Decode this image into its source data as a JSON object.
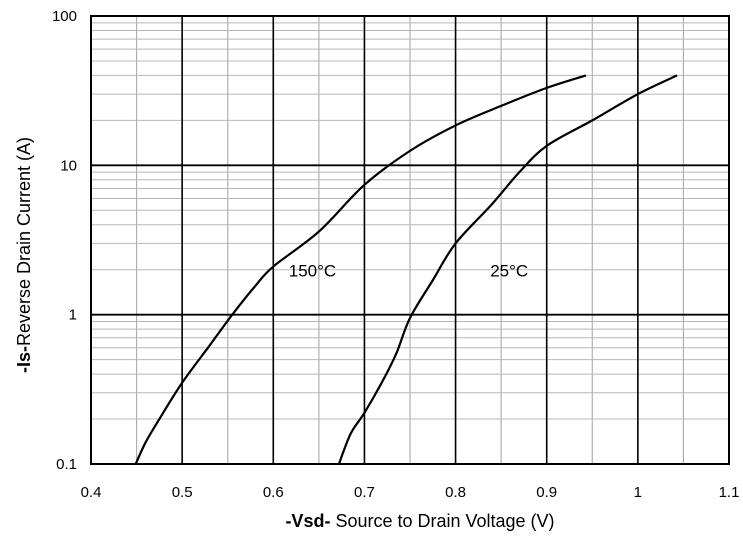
{
  "chart_data": {
    "type": "line",
    "xlabel_bold": "-Vsd-",
    "xlabel_rest": " Source to Drain Voltage (V)",
    "ylabel_bold": "-Is-",
    "ylabel_rest": "Reverse  Drain Current (A)",
    "xlim": [
      0.4,
      1.1
    ],
    "ylim": [
      0.1,
      100
    ],
    "yscale": "log",
    "grid": true,
    "x_ticks": [
      0.4,
      0.5,
      0.6,
      0.7,
      0.8,
      0.9,
      1,
      1.1
    ],
    "x_tick_labels": [
      "0.4",
      "0.5",
      "0.6",
      "0.7",
      "0.8",
      "0.9",
      "1",
      "1.1"
    ],
    "y_ticks": [
      0.1,
      1,
      10,
      100
    ],
    "y_tick_labels": [
      "0.1",
      "1",
      "10",
      "100"
    ],
    "series": [
      {
        "name": "150°C",
        "color": "#000000",
        "points": [
          [
            0.449,
            0.1
          ],
          [
            0.46,
            0.14
          ],
          [
            0.475,
            0.2
          ],
          [
            0.5,
            0.35
          ],
          [
            0.53,
            0.62
          ],
          [
            0.555,
            1.0
          ],
          [
            0.58,
            1.55
          ],
          [
            0.6,
            2.1
          ],
          [
            0.65,
            3.6
          ],
          [
            0.7,
            7.4
          ],
          [
            0.75,
            12.5
          ],
          [
            0.8,
            18.5
          ],
          [
            0.85,
            25
          ],
          [
            0.9,
            33
          ],
          [
            0.943,
            40
          ]
        ]
      },
      {
        "name": "25°C",
        "color": "#000000",
        "points": [
          [
            0.672,
            0.1
          ],
          [
            0.685,
            0.16
          ],
          [
            0.7,
            0.22
          ],
          [
            0.72,
            0.36
          ],
          [
            0.735,
            0.55
          ],
          [
            0.75,
            0.95
          ],
          [
            0.775,
            1.7
          ],
          [
            0.8,
            3.0
          ],
          [
            0.84,
            5.5
          ],
          [
            0.87,
            9.0
          ],
          [
            0.9,
            13.5
          ],
          [
            0.95,
            20
          ],
          [
            1.0,
            30
          ],
          [
            1.043,
            40
          ]
        ]
      }
    ]
  }
}
